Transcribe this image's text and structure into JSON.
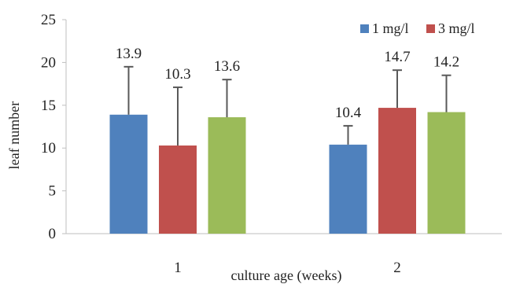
{
  "chart_data": {
    "type": "bar",
    "title": "",
    "xlabel": "culture age (weeks)",
    "ylabel": "leaf number",
    "ylim": [
      0,
      25
    ],
    "yticks": [
      0,
      5,
      10,
      15,
      20,
      25
    ],
    "categories": [
      "1",
      "2"
    ],
    "series": [
      {
        "name": "1 mg/l",
        "color": "#4F81BD",
        "values": [
          13.9,
          10.4
        ],
        "errors": [
          5.6,
          2.2
        ],
        "labels": [
          "13.9",
          "10.4"
        ]
      },
      {
        "name": "3 mg/l",
        "color": "#C0504D",
        "values": [
          10.3,
          14.7
        ],
        "errors": [
          6.8,
          4.4
        ],
        "labels": [
          "10.3",
          "14.7"
        ]
      },
      {
        "name": "",
        "color": "#9BBB59",
        "values": [
          13.6,
          14.2
        ],
        "errors": [
          4.4,
          4.3
        ],
        "labels": [
          "13.6",
          "14.2"
        ]
      }
    ],
    "grid": false,
    "legend_position": "top-right"
  }
}
